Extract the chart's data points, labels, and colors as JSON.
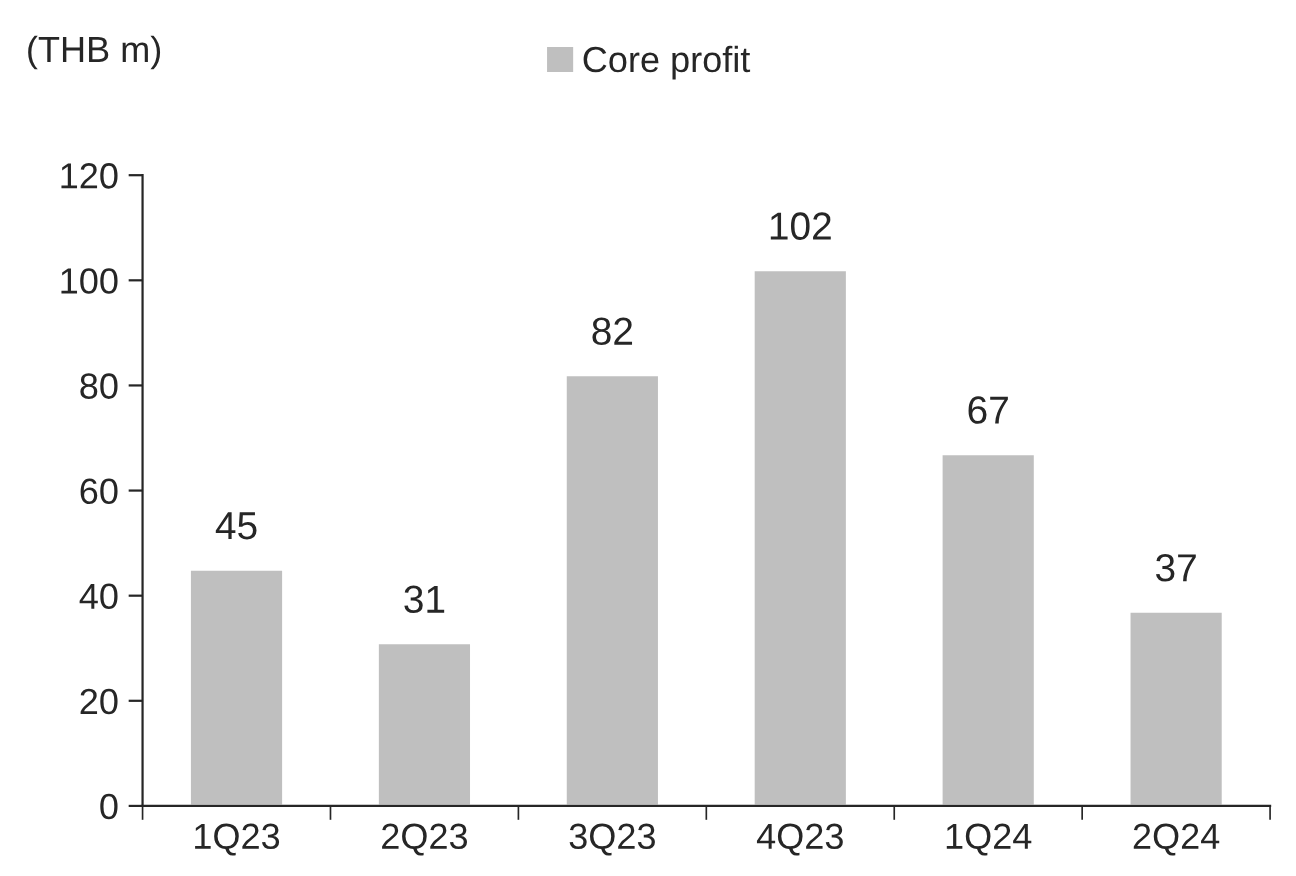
{
  "chart_data": {
    "type": "bar",
    "ylabel": "(THB m)",
    "categories": [
      "1Q23",
      "2Q23",
      "3Q23",
      "4Q23",
      "1Q24",
      "2Q24"
    ],
    "series": [
      {
        "name": "Core profit",
        "color": "#bfbfbf",
        "values": [
          45,
          31,
          82,
          102,
          67,
          37
        ]
      }
    ],
    "ylim": [
      0,
      120
    ],
    "yticks": [
      0,
      20,
      40,
      60,
      80,
      100,
      120
    ],
    "data_labels": true,
    "legend": "top",
    "grid": false
  }
}
